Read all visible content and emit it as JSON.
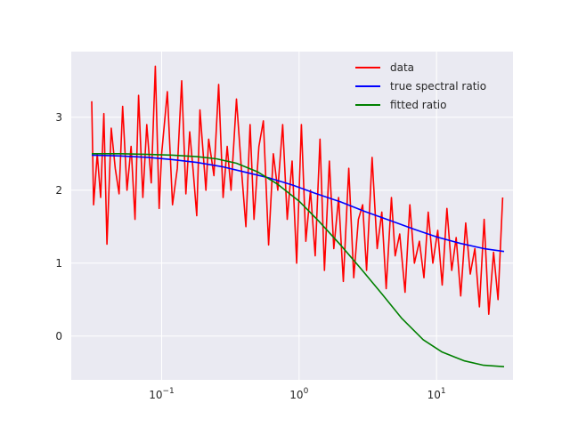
{
  "chart_data": {
    "type": "line",
    "title": "",
    "xlabel": "",
    "ylabel": "",
    "xscale": "log",
    "xlim": [
      0.022,
      36
    ],
    "ylim": [
      -0.6,
      3.9
    ],
    "grid": true,
    "legend_position": "top-right",
    "x_ticks": [
      {
        "value": 0.1,
        "base": "10",
        "exp": "−1"
      },
      {
        "value": 1,
        "base": "10",
        "exp": "0"
      },
      {
        "value": 10,
        "base": "10",
        "exp": "1"
      }
    ],
    "y_ticks": [
      {
        "value": 0,
        "label": "0"
      },
      {
        "value": 1,
        "label": "1"
      },
      {
        "value": 2,
        "label": "2"
      },
      {
        "value": 3,
        "label": "3"
      }
    ],
    "series": [
      {
        "name": "data",
        "color": "#ff0000",
        "x": [
          0.031,
          0.032,
          0.034,
          0.036,
          0.038,
          0.04,
          0.043,
          0.046,
          0.049,
          0.052,
          0.056,
          0.06,
          0.064,
          0.068,
          0.073,
          0.078,
          0.084,
          0.09,
          0.096,
          0.1,
          0.11,
          0.12,
          0.13,
          0.14,
          0.15,
          0.16,
          0.17,
          0.18,
          0.19,
          0.21,
          0.22,
          0.24,
          0.26,
          0.28,
          0.3,
          0.32,
          0.35,
          0.38,
          0.41,
          0.44,
          0.47,
          0.51,
          0.55,
          0.6,
          0.65,
          0.7,
          0.76,
          0.82,
          0.89,
          0.96,
          1.04,
          1.12,
          1.21,
          1.31,
          1.42,
          1.53,
          1.66,
          1.79,
          1.94,
          2.1,
          2.3,
          2.5,
          2.7,
          2.9,
          3.1,
          3.4,
          3.7,
          4.0,
          4.3,
          4.7,
          5.0,
          5.4,
          5.9,
          6.4,
          6.9,
          7.5,
          8.1,
          8.7,
          9.4,
          10.2,
          11.0,
          11.9,
          12.9,
          13.9,
          15.0,
          16.3,
          17.6,
          19.0,
          20.5,
          22.2,
          24.0,
          26.0,
          28.0,
          30.3
        ],
        "y": [
          3.22,
          1.8,
          2.5,
          1.9,
          3.05,
          1.26,
          2.85,
          2.3,
          1.95,
          3.15,
          2.0,
          2.6,
          1.6,
          3.3,
          1.9,
          2.9,
          2.1,
          3.7,
          1.75,
          2.5,
          3.35,
          1.8,
          2.3,
          3.5,
          1.95,
          2.8,
          2.25,
          1.65,
          3.1,
          2.0,
          2.7,
          2.2,
          3.45,
          1.9,
          2.6,
          2.0,
          3.25,
          2.3,
          1.5,
          2.9,
          1.6,
          2.6,
          2.95,
          1.25,
          2.5,
          2.0,
          2.9,
          1.6,
          2.4,
          1.0,
          2.9,
          1.3,
          2.0,
          1.1,
          2.7,
          0.9,
          2.4,
          1.2,
          1.9,
          0.75,
          2.3,
          0.8,
          1.6,
          1.8,
          0.9,
          2.45,
          1.2,
          1.7,
          0.65,
          1.9,
          1.1,
          1.4,
          0.6,
          1.8,
          1.0,
          1.3,
          0.8,
          1.7,
          1.0,
          1.45,
          0.7,
          1.75,
          0.9,
          1.35,
          0.55,
          1.55,
          0.85,
          1.2,
          0.4,
          1.6,
          0.3,
          1.15,
          0.5,
          1.9
        ]
      },
      {
        "name": "true spectral ratio",
        "color": "#0000ff",
        "x": [
          0.031,
          0.05,
          0.08,
          0.12,
          0.18,
          0.28,
          0.4,
          0.6,
          0.9,
          1.3,
          2.0,
          3.0,
          4.5,
          7.0,
          10.0,
          15.0,
          22.0,
          31.0
        ],
        "y": [
          2.48,
          2.47,
          2.45,
          2.42,
          2.38,
          2.32,
          2.25,
          2.17,
          2.07,
          1.96,
          1.84,
          1.71,
          1.59,
          1.46,
          1.36,
          1.27,
          1.2,
          1.16
        ]
      },
      {
        "name": "fitted ratio",
        "color": "#008000",
        "x": [
          0.031,
          0.05,
          0.08,
          0.12,
          0.18,
          0.25,
          0.35,
          0.5,
          0.7,
          1.0,
          1.4,
          2.0,
          2.8,
          4.0,
          5.6,
          8.0,
          11.0,
          16.0,
          22.0,
          31.0
        ],
        "y": [
          2.5,
          2.5,
          2.49,
          2.48,
          2.46,
          2.43,
          2.37,
          2.25,
          2.08,
          1.85,
          1.57,
          1.25,
          0.93,
          0.58,
          0.24,
          -0.05,
          -0.22,
          -0.34,
          -0.4,
          -0.42
        ]
      }
    ]
  }
}
